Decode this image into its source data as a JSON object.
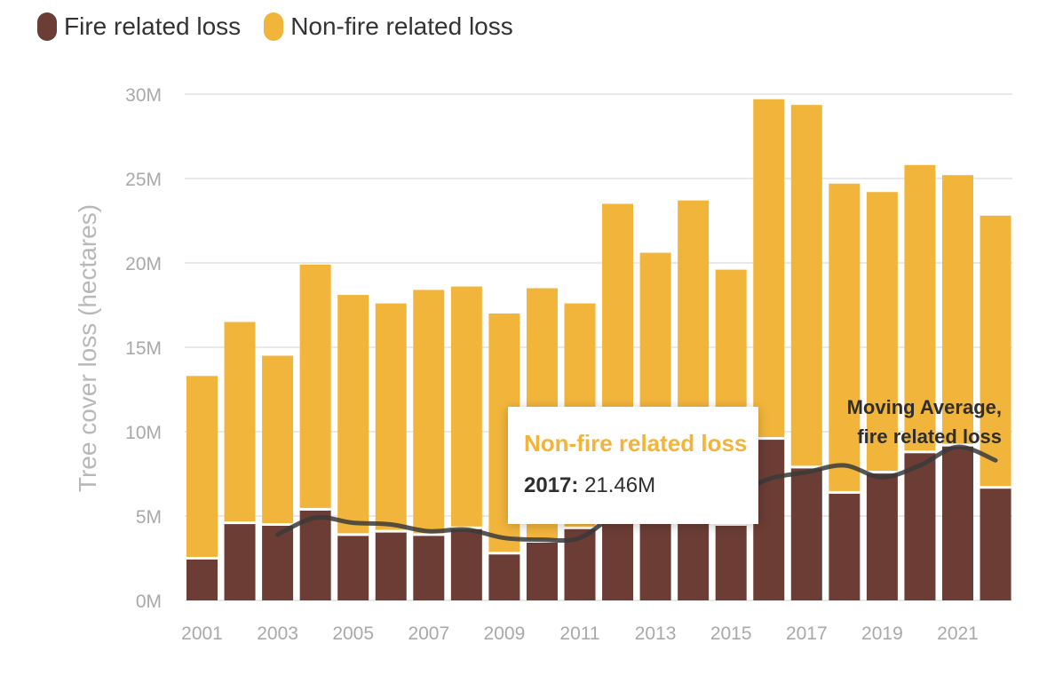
{
  "legend": {
    "items": [
      {
        "label": "Fire related loss",
        "color": "#6b3d35"
      },
      {
        "label": "Non-fire related loss",
        "color": "#f2b53c"
      }
    ]
  },
  "tooltip": {
    "title": "Non-fire related loss",
    "year_label": "2017:",
    "value_label": "21.46M"
  },
  "annotation": {
    "line1": "Moving Average,",
    "line2": "fire related loss"
  },
  "chart_data": {
    "type": "bar",
    "stacked": true,
    "ylabel": "Tree cover loss (hectares)",
    "ylim": [
      0,
      30000000
    ],
    "yticks": [
      0,
      5000000,
      10000000,
      15000000,
      20000000,
      25000000,
      30000000
    ],
    "ytick_labels": [
      "0M",
      "5M",
      "10M",
      "15M",
      "20M",
      "25M",
      "30M"
    ],
    "categories": [
      "2001",
      "2002",
      "2003",
      "2004",
      "2005",
      "2006",
      "2007",
      "2008",
      "2009",
      "2010",
      "2011",
      "2012",
      "2013",
      "2014",
      "2015",
      "2016",
      "2017",
      "2018",
      "2019",
      "2020",
      "2021",
      "2022"
    ],
    "xtick_labels": [
      "2001",
      "2003",
      "2005",
      "2007",
      "2009",
      "2011",
      "2013",
      "2015",
      "2017",
      "2019",
      "2021"
    ],
    "series": [
      {
        "name": "Fire related loss",
        "color": "#6b3d35",
        "values": [
          2.5,
          4.6,
          4.5,
          5.4,
          3.9,
          4.1,
          3.9,
          4.3,
          2.8,
          3.5,
          4.3,
          6.5,
          7.2,
          5.5,
          4.5,
          9.6,
          7.9,
          6.4,
          7.6,
          8.8,
          9.2,
          6.7
        ]
      },
      {
        "name": "Non-fire related loss",
        "color": "#f2b53c",
        "values": [
          10.8,
          11.9,
          10.0,
          14.5,
          14.2,
          13.5,
          14.5,
          14.3,
          14.2,
          15.0,
          13.3,
          17.0,
          13.4,
          18.2,
          15.1,
          20.1,
          21.46,
          18.3,
          16.6,
          17.0,
          16.0,
          16.1
        ]
      }
    ],
    "moving_average": {
      "name": "Moving Average, fire related loss",
      "color": "#3a3a3a",
      "x": [
        "2003",
        "2004",
        "2005",
        "2006",
        "2007",
        "2008",
        "2009",
        "2010",
        "2011",
        "2012",
        "2013",
        "2014",
        "2015",
        "2016",
        "2017",
        "2018",
        "2019",
        "2020",
        "2021",
        "2022"
      ],
      "values": [
        3.9,
        4.9,
        4.6,
        4.5,
        4.1,
        4.2,
        3.7,
        3.6,
        3.7,
        5.2,
        5.9,
        6.0,
        6.2,
        7.2,
        7.6,
        8.0,
        7.3,
        8.0,
        9.1,
        8.3
      ]
    },
    "highlight": {
      "category": "2017",
      "series": "Non-fire related loss",
      "value": 21.46
    },
    "grid": true,
    "legend_position": "top-left"
  }
}
